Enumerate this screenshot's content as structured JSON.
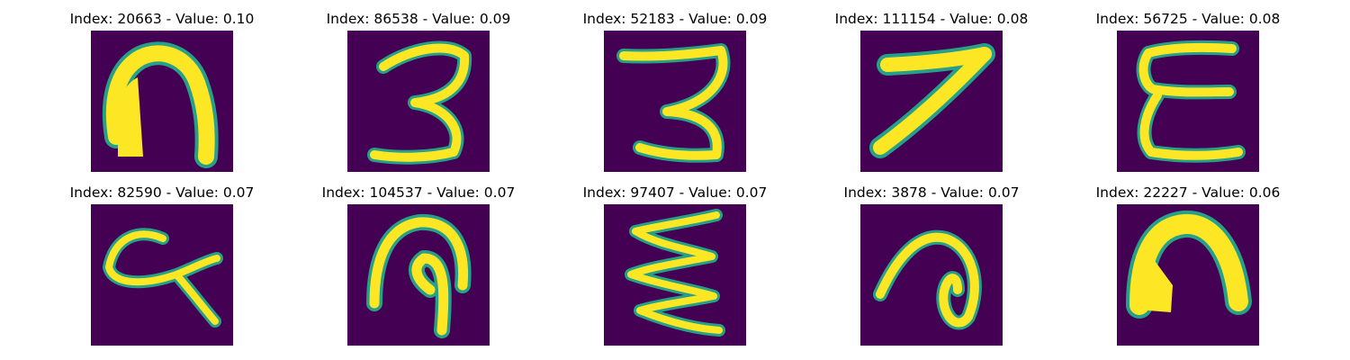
{
  "colors": {
    "background": "#440154",
    "stroke": "#fde725",
    "edge": "#27a08a"
  },
  "panels": [
    {
      "title": "Index: 20663 - Value: 0.10",
      "glyph": "arch-thick"
    },
    {
      "title": "Index: 86538 - Value: 0.09",
      "glyph": "digit-3"
    },
    {
      "title": "Index: 52183 - Value: 0.09",
      "glyph": "digit-3"
    },
    {
      "title": "Index: 111154 - Value: 0.08",
      "glyph": "digit-7"
    },
    {
      "title": "Index: 56725 - Value: 0.08",
      "glyph": "reversed-3"
    },
    {
      "title": "Index: 82590 - Value: 0.07",
      "glyph": "loop-q"
    },
    {
      "title": "Index: 104537 - Value: 0.07",
      "glyph": "hook-arch"
    },
    {
      "title": "Index: 97407 - Value: 0.07",
      "glyph": "zigzag"
    },
    {
      "title": "Index: 3878 - Value: 0.07",
      "glyph": "curl"
    },
    {
      "title": "Index: 22227 - Value: 0.06",
      "glyph": "arch-thick"
    }
  ]
}
